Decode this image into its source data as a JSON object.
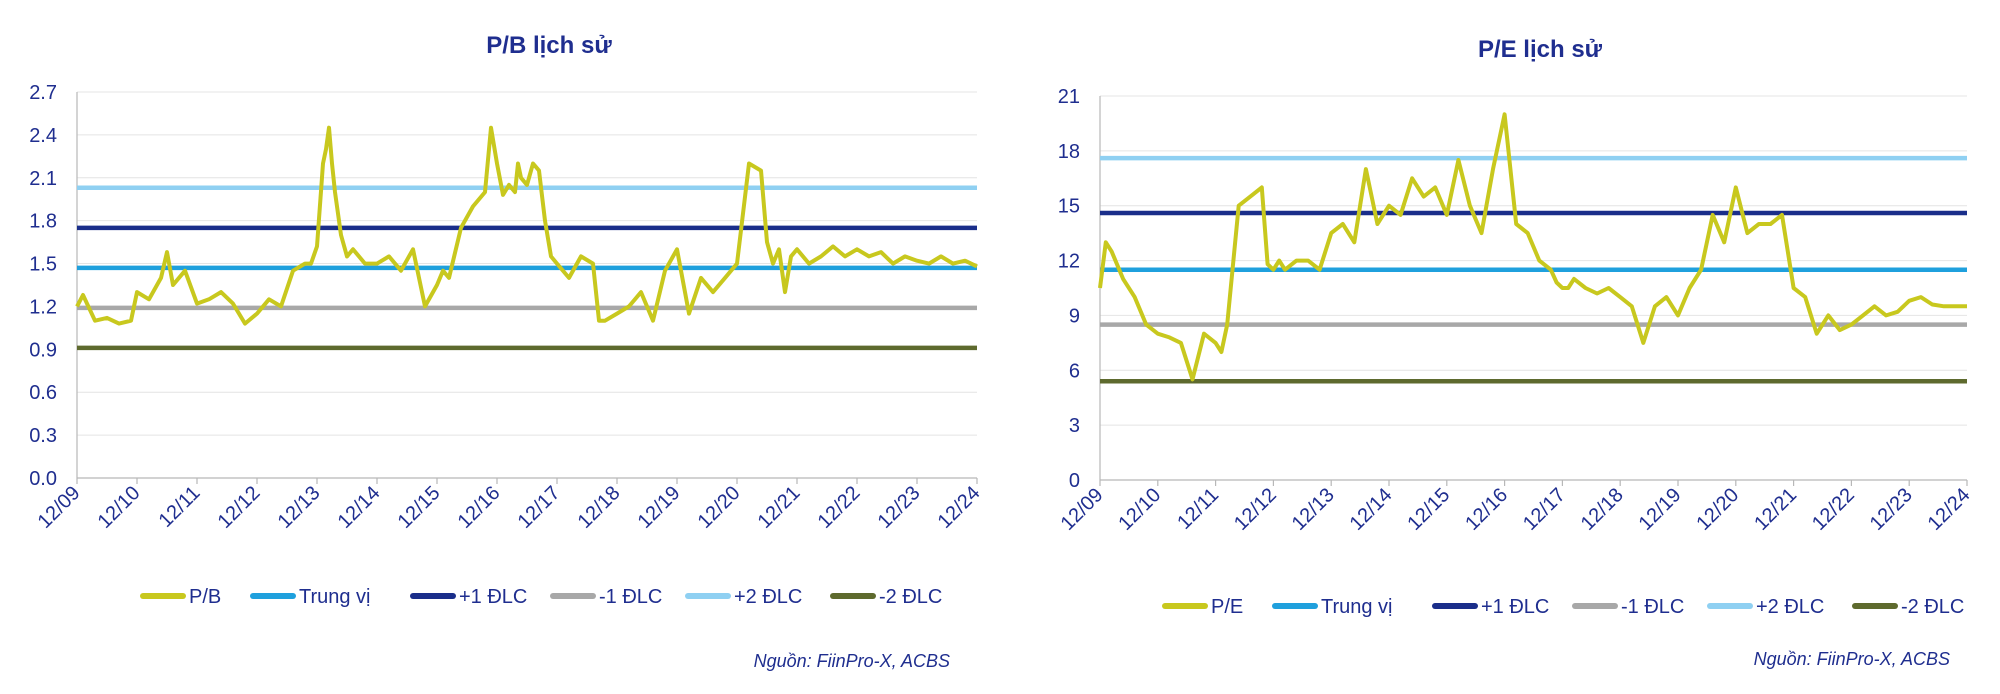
{
  "chart_data": [
    {
      "type": "line",
      "title": "P/B lịch sử",
      "source": "Nguồn: FiinPro-X, ACBS",
      "x_tick_labels": [
        "12/09",
        "12/10",
        "12/11",
        "12/12",
        "12/13",
        "12/14",
        "12/15",
        "12/16",
        "12/17",
        "12/18",
        "12/19",
        "12/20",
        "12/21",
        "12/22",
        "12/23",
        "12/24"
      ],
      "y_tick_labels": [
        "0.0",
        "0.3",
        "0.6",
        "0.9",
        "1.2",
        "1.5",
        "1.8",
        "2.1",
        "2.4",
        "2.7"
      ],
      "ylim": [
        0,
        2.7
      ],
      "xlim": [
        0,
        15
      ],
      "grid": true,
      "legend_position": "bottom",
      "series": [
        {
          "name": "P/B",
          "color": "#c8c81e",
          "kind": "line",
          "x": [
            0,
            0.1,
            0.3,
            0.5,
            0.7,
            0.9,
            1.0,
            1.2,
            1.4,
            1.5,
            1.6,
            1.8,
            2.0,
            2.2,
            2.4,
            2.6,
            2.8,
            3.0,
            3.2,
            3.4,
            3.6,
            3.8,
            3.9,
            4.0,
            4.1,
            4.15,
            4.2,
            4.25,
            4.3,
            4.4,
            4.5,
            4.6,
            4.8,
            5.0,
            5.2,
            5.4,
            5.6,
            5.8,
            6.0,
            6.1,
            6.2,
            6.4,
            6.6,
            6.8,
            6.9,
            7.0,
            7.1,
            7.2,
            7.3,
            7.35,
            7.4,
            7.5,
            7.6,
            7.7,
            7.8,
            7.9,
            8.0,
            8.2,
            8.4,
            8.6,
            8.7,
            8.8,
            9.0,
            9.2,
            9.4,
            9.6,
            9.8,
            10.0,
            10.2,
            10.4,
            10.6,
            10.8,
            11.0,
            11.2,
            11.4,
            11.5,
            11.6,
            11.7,
            11.8,
            11.9,
            12.0,
            12.2,
            12.4,
            12.6,
            12.8,
            13.0,
            13.2,
            13.4,
            13.6,
            13.8,
            14.0,
            14.2,
            14.4,
            14.6,
            14.8,
            15.0
          ],
          "y": [
            1.2,
            1.28,
            1.1,
            1.12,
            1.08,
            1.1,
            1.3,
            1.25,
            1.4,
            1.58,
            1.35,
            1.45,
            1.22,
            1.25,
            1.3,
            1.22,
            1.08,
            1.15,
            1.25,
            1.2,
            1.45,
            1.5,
            1.5,
            1.62,
            2.2,
            2.3,
            2.45,
            2.2,
            2.0,
            1.7,
            1.55,
            1.6,
            1.5,
            1.5,
            1.55,
            1.45,
            1.6,
            1.2,
            1.35,
            1.45,
            1.4,
            1.75,
            1.9,
            2.0,
            2.45,
            2.2,
            1.98,
            2.05,
            2.0,
            2.2,
            2.1,
            2.05,
            2.2,
            2.15,
            1.8,
            1.55,
            1.5,
            1.4,
            1.55,
            1.5,
            1.1,
            1.1,
            1.15,
            1.2,
            1.3,
            1.1,
            1.45,
            1.6,
            1.15,
            1.4,
            1.3,
            1.4,
            1.5,
            2.2,
            2.15,
            1.65,
            1.5,
            1.6,
            1.3,
            1.55,
            1.6,
            1.5,
            1.55,
            1.62,
            1.55,
            1.6,
            1.55,
            1.58,
            1.5,
            1.55,
            1.52,
            1.5,
            1.55,
            1.5,
            1.52,
            1.48
          ]
        },
        {
          "name": "Trung vị",
          "color": "#1fa0dd",
          "kind": "hline",
          "value": 1.47
        },
        {
          "name": "+1 ĐLC",
          "color": "#1a2e8a",
          "kind": "hline",
          "value": 1.75
        },
        {
          "name": "-1 ĐLC",
          "color": "#a8a8a8",
          "kind": "hline",
          "value": 1.19
        },
        {
          "name": "+2 ĐLC",
          "color": "#8fd0f2",
          "kind": "hline",
          "value": 2.03
        },
        {
          "name": "-2 ĐLC",
          "color": "#5e6a2e",
          "kind": "hline",
          "value": 0.91
        }
      ]
    },
    {
      "type": "line",
      "title": "P/E lịch sử",
      "source": "Nguồn: FiinPro-X, ACBS",
      "x_tick_labels": [
        "12/09",
        "12/10",
        "12/11",
        "12/12",
        "12/13",
        "12/14",
        "12/15",
        "12/16",
        "12/17",
        "12/18",
        "12/19",
        "12/20",
        "12/21",
        "12/22",
        "12/23",
        "12/24"
      ],
      "y_tick_labels": [
        "0",
        "3",
        "6",
        "9",
        "12",
        "15",
        "18",
        "21"
      ],
      "ylim": [
        0,
        21
      ],
      "xlim": [
        0,
        15
      ],
      "grid": true,
      "legend_position": "bottom",
      "series": [
        {
          "name": "P/E",
          "color": "#c8c81e",
          "kind": "line",
          "x": [
            0,
            0.1,
            0.2,
            0.4,
            0.6,
            0.8,
            1.0,
            1.2,
            1.4,
            1.6,
            1.8,
            2.0,
            2.1,
            2.2,
            2.4,
            2.6,
            2.8,
            2.9,
            3.0,
            3.1,
            3.2,
            3.4,
            3.6,
            3.8,
            4.0,
            4.2,
            4.4,
            4.6,
            4.8,
            5.0,
            5.2,
            5.4,
            5.6,
            5.8,
            6.0,
            6.2,
            6.4,
            6.6,
            6.8,
            7.0,
            7.2,
            7.4,
            7.6,
            7.8,
            7.9,
            8.0,
            8.1,
            8.2,
            8.4,
            8.6,
            8.8,
            9.0,
            9.2,
            9.4,
            9.6,
            9.8,
            10.0,
            10.2,
            10.4,
            10.6,
            10.8,
            11.0,
            11.2,
            11.4,
            11.6,
            11.8,
            12.0,
            12.2,
            12.4,
            12.6,
            12.8,
            13.0,
            13.2,
            13.4,
            13.6,
            13.8,
            14.0,
            14.2,
            14.4,
            14.6,
            14.8,
            15.0
          ],
          "y": [
            10.5,
            13.0,
            12.5,
            11.0,
            10.0,
            8.5,
            8.0,
            7.8,
            7.5,
            5.5,
            8.0,
            7.5,
            7.0,
            8.5,
            15.0,
            15.5,
            16.0,
            11.8,
            11.5,
            12.0,
            11.5,
            12.0,
            12.0,
            11.5,
            13.5,
            14.0,
            13.0,
            17.0,
            14.0,
            15.0,
            14.5,
            16.5,
            15.5,
            16.0,
            14.5,
            17.5,
            15.0,
            13.5,
            17.0,
            20.0,
            14.0,
            13.5,
            12.0,
            11.5,
            10.8,
            10.5,
            10.5,
            11.0,
            10.5,
            10.2,
            10.5,
            10.0,
            9.5,
            7.5,
            9.5,
            10.0,
            9.0,
            10.5,
            11.5,
            14.5,
            13.0,
            16.0,
            13.5,
            14.0,
            14.0,
            14.5,
            10.5,
            10.0,
            8.0,
            9.0,
            8.2,
            8.5,
            9.0,
            9.5,
            9.0,
            9.2,
            9.8,
            10.0,
            9.6,
            9.5,
            9.5,
            9.5
          ]
        },
        {
          "name": "Trung vị",
          "color": "#1fa0dd",
          "kind": "hline",
          "value": 11.5
        },
        {
          "name": "+1 ĐLC",
          "color": "#1a2e8a",
          "kind": "hline",
          "value": 14.6
        },
        {
          "name": "-1 ĐLC",
          "color": "#a8a8a8",
          "kind": "hline",
          "value": 8.5
        },
        {
          "name": "+2 ĐLC",
          "color": "#8fd0f2",
          "kind": "hline",
          "value": 17.6
        },
        {
          "name": "-2 ĐLC",
          "color": "#5e6a2e",
          "kind": "hline",
          "value": 5.4
        }
      ]
    }
  ]
}
